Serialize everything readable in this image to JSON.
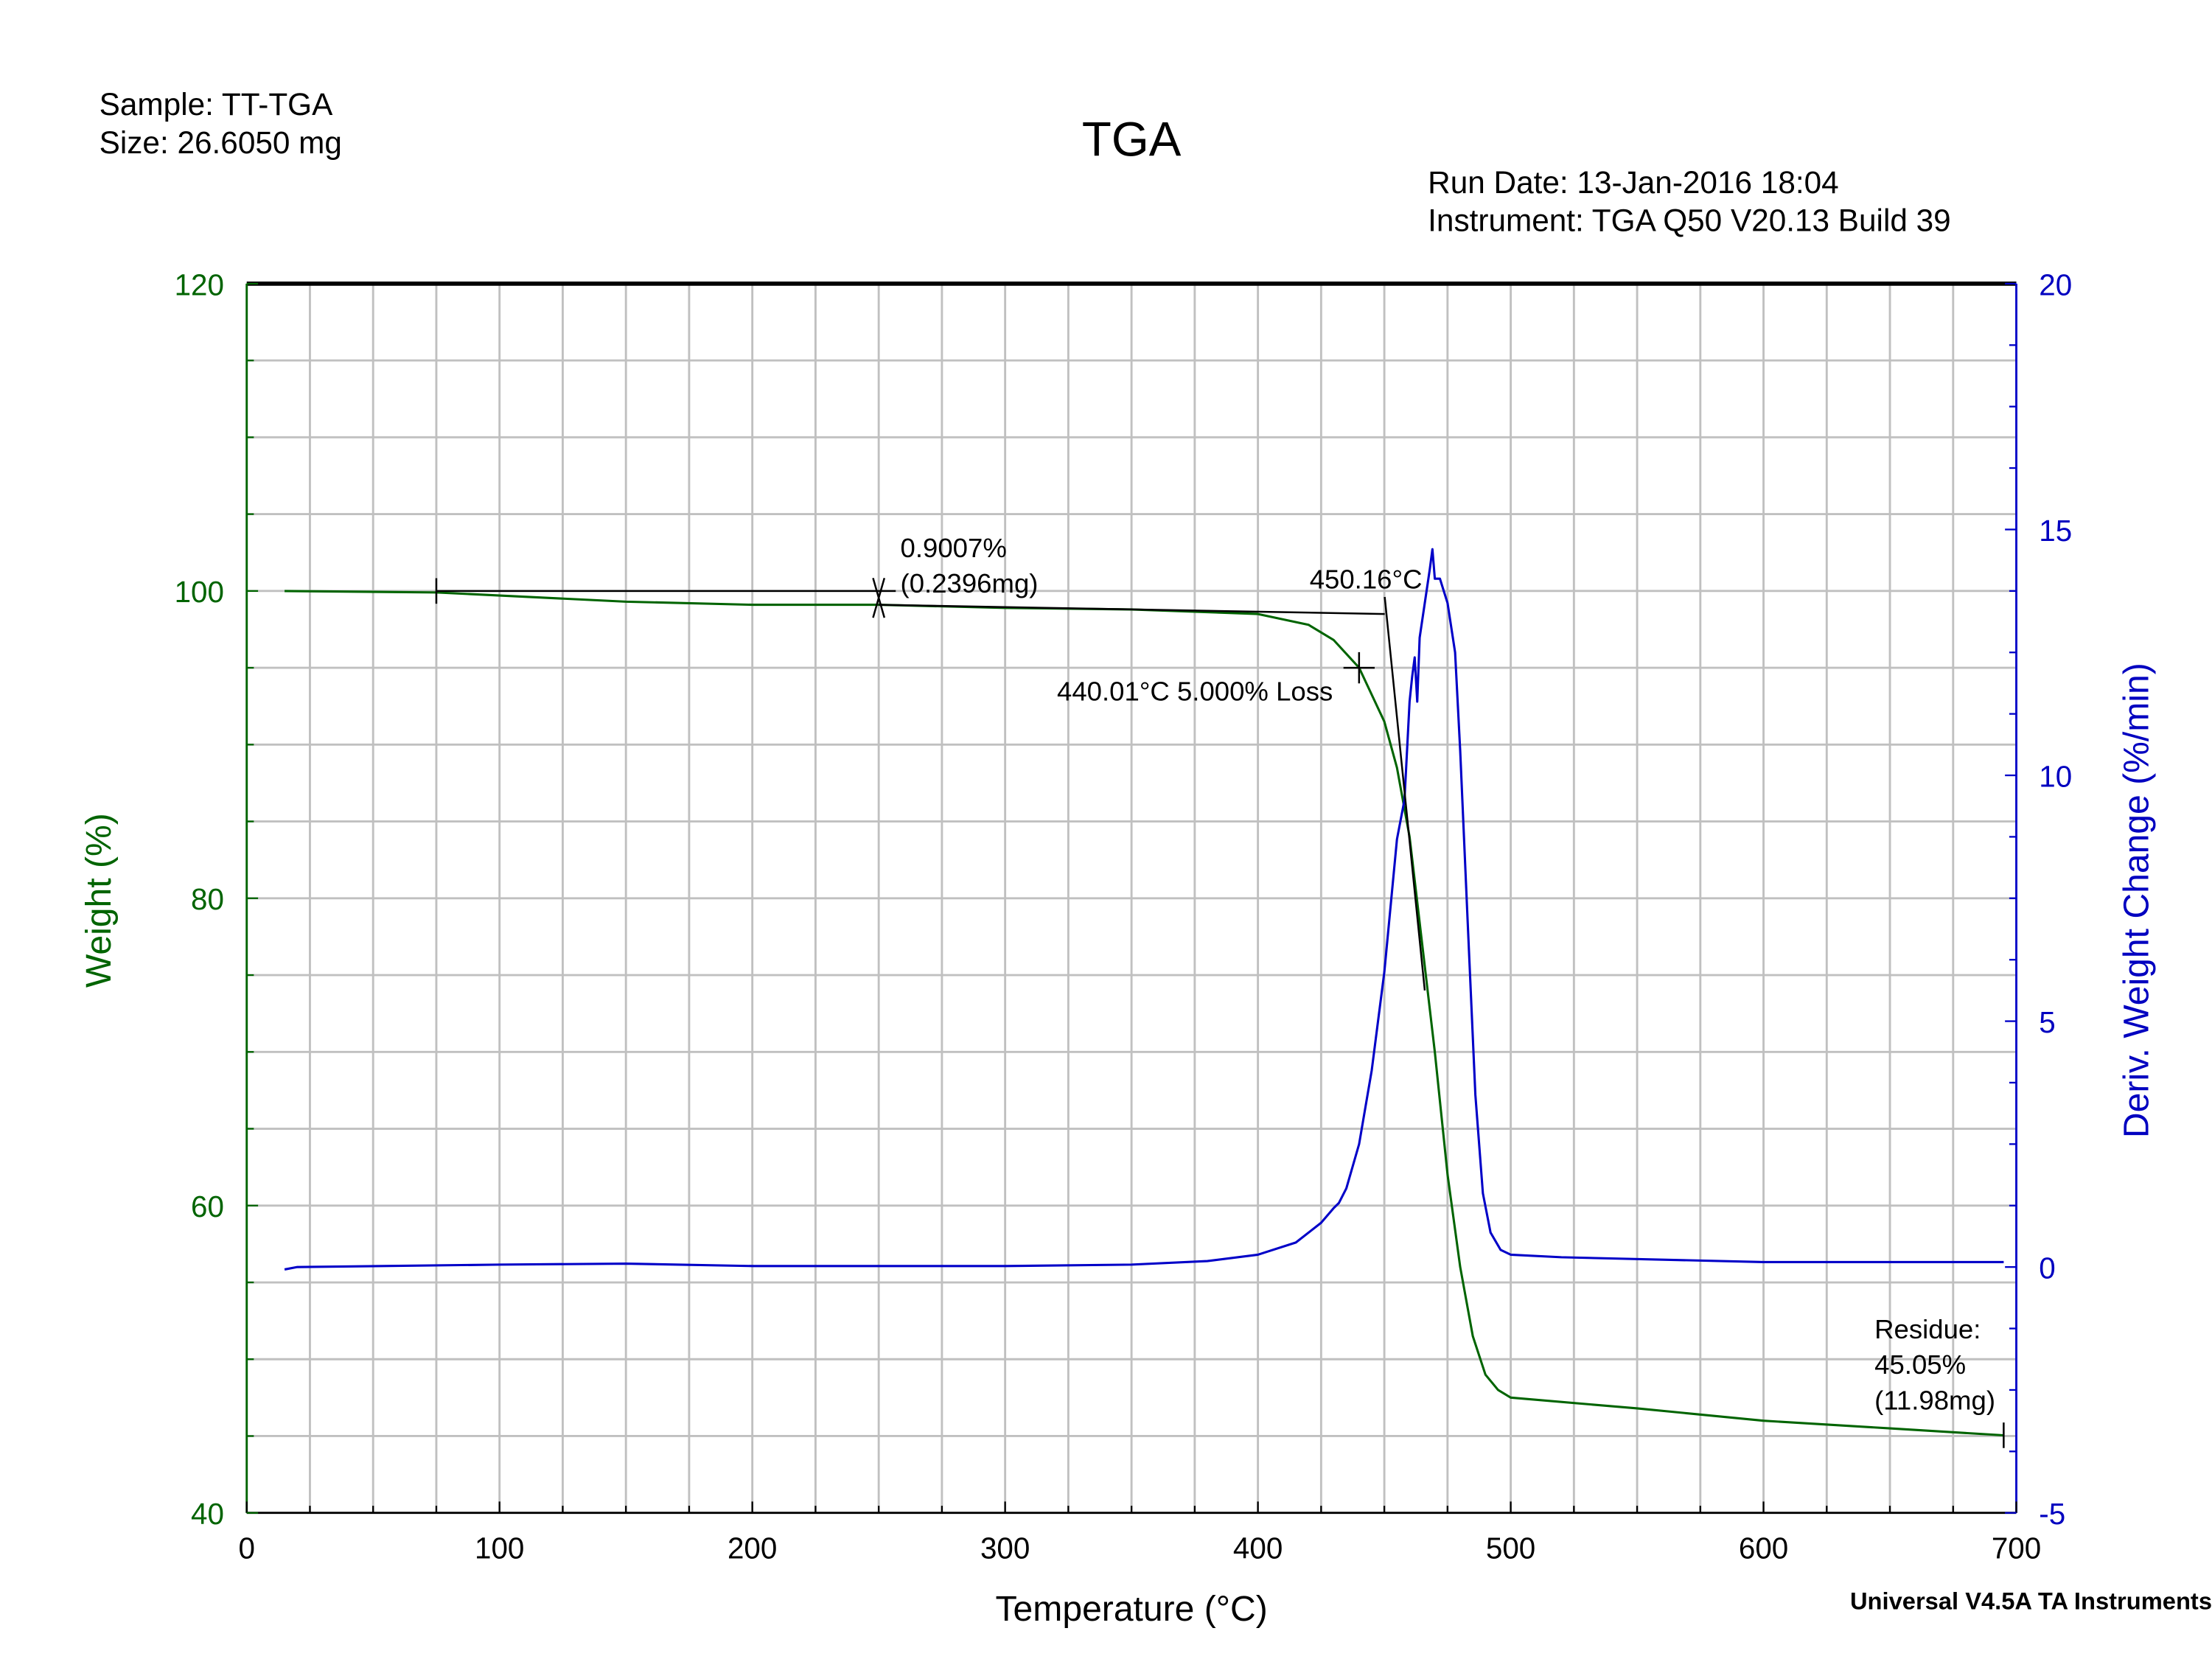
{
  "header": {
    "sample": "Sample: TT-TGA",
    "size": "Size:  26.6050 mg",
    "title": "TGA",
    "run_date": "Run Date: 13-Jan-2016 18:04",
    "instrument": "Instrument: TGA Q50 V20.13 Build 39",
    "footer": "Universal V4.5A TA Instruments"
  },
  "colors": {
    "weight": "#006400",
    "deriv": "#0000c8",
    "grid": "#c0c0c0",
    "annotation": "#000000"
  },
  "chart_data": {
    "type": "line",
    "title": "TGA",
    "xlabel": "Temperature (°C)",
    "ylabel": "Weight (%)",
    "y2label": "Deriv. Weight Change (%/min)",
    "xlim": [
      0,
      700
    ],
    "ylim": [
      40,
      120
    ],
    "y2lim": [
      -5,
      20
    ],
    "grid": true,
    "x_ticks": [
      "0",
      "100",
      "200",
      "300",
      "400",
      "500",
      "600",
      "700"
    ],
    "y_ticks": [
      "40",
      "60",
      "80",
      "100",
      "120"
    ],
    "y2_ticks": [
      "-5",
      "0",
      "5",
      "10",
      "15",
      "20"
    ],
    "series": [
      {
        "axis": "left",
        "x": [
          15,
          75,
          150,
          200,
          250,
          300,
          350,
          400,
          420,
          430,
          440,
          450,
          455,
          460,
          465,
          470,
          475,
          480,
          485,
          490,
          495,
          500,
          550,
          600,
          650,
          695
        ],
        "y": [
          100,
          99.9,
          99.3,
          99.1,
          99.1,
          98.9,
          98.8,
          98.5,
          97.8,
          96.8,
          95.0,
          91.5,
          88.5,
          84,
          77,
          70,
          62,
          56,
          51.5,
          49,
          48,
          47.5,
          46.8,
          46.0,
          45.5,
          45.05
        ]
      },
      {
        "axis": "right",
        "x": [
          15,
          20,
          100,
          150,
          200,
          300,
          350,
          380,
          400,
          415,
          425,
          430,
          432,
          435,
          440,
          445,
          450,
          455,
          458,
          460,
          461,
          462,
          463,
          464,
          466,
          468,
          469,
          470,
          472,
          475,
          478,
          480,
          483,
          486,
          489,
          492,
          496,
          500,
          520,
          600,
          695
        ],
        "y": [
          -0.05,
          0,
          0.05,
          0.07,
          0.02,
          0.02,
          0.05,
          0.12,
          0.25,
          0.5,
          0.9,
          1.2,
          1.3,
          1.6,
          2.5,
          4.0,
          6.0,
          8.7,
          9.5,
          11.5,
          12.0,
          12.4,
          11.5,
          12.8,
          13.5,
          14.2,
          14.6,
          14.0,
          14.0,
          13.5,
          12.5,
          10.5,
          7,
          3.5,
          1.5,
          0.7,
          0.35,
          0.25,
          0.2,
          0.1,
          0.1
        ]
      }
    ],
    "annotations": {
      "step_loss": {
        "label1": "0.9007%",
        "label2": "(0.2396mg)",
        "from_x": 75,
        "to_x": 250,
        "from_y": 100.0,
        "to_y": 99.1
      },
      "onset": {
        "label": "450.16°C",
        "x": 450.16,
        "y": 98.5,
        "line_end": [
          466,
          74
        ]
      },
      "five_percent": {
        "label": "440.01°C 5.000% Loss",
        "x": 440.01,
        "y": 95.0
      },
      "residue": {
        "label1": "Residue:",
        "label2": "45.05%",
        "label3": "(11.98mg)",
        "x": 695,
        "y": 45.05
      }
    }
  }
}
